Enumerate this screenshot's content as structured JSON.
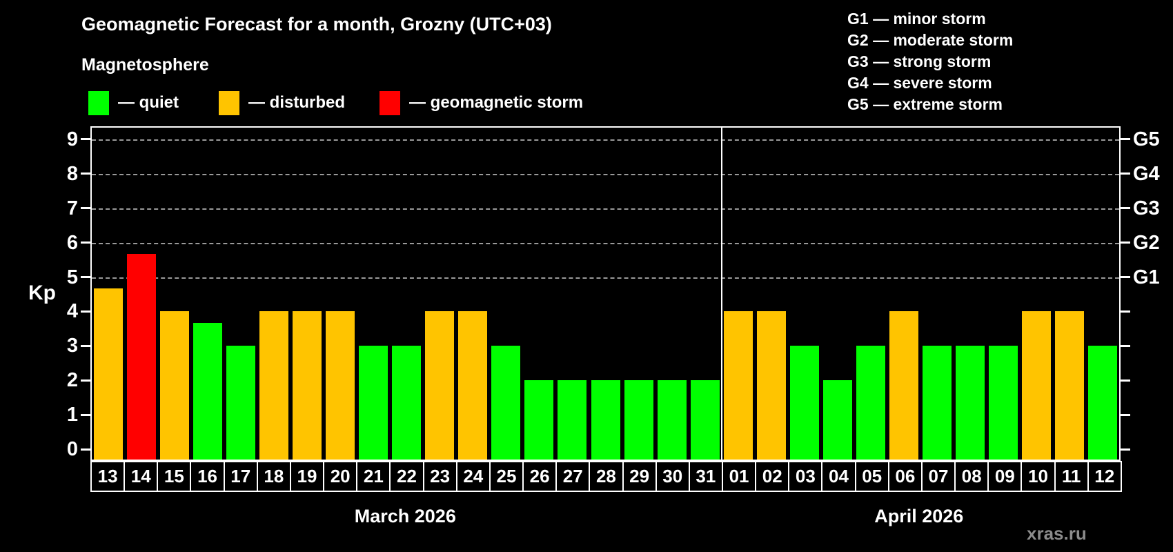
{
  "header": {
    "title": "Geomagnetic Forecast for a month, Grozny (UTC+03)",
    "subtitle": "Magnetosphere",
    "legend": [
      {
        "name": "quiet",
        "label": "— quiet",
        "color": "#00ff00"
      },
      {
        "name": "disturbed",
        "label": "— disturbed",
        "color": "#ffc400"
      },
      {
        "name": "storm",
        "label": "— geomagnetic storm",
        "color": "#ff0000"
      }
    ],
    "g_scale": [
      "G1 — minor storm",
      "G2 — moderate storm",
      "G3 — strong storm",
      "G4 — severe storm",
      "G5 — extreme storm"
    ]
  },
  "watermark": "xras.ru",
  "chart_data": {
    "type": "bar",
    "title": "Geomagnetic Forecast for a month, Grozny (UTC+03)",
    "ylabel": "Kp",
    "ylim": [
      0,
      9
    ],
    "y_ticks": [
      0,
      1,
      2,
      3,
      4,
      5,
      6,
      7,
      8,
      9
    ],
    "gridlines_at": [
      5,
      6,
      7,
      8,
      9
    ],
    "grid": "dashed horizontal lines at storm levels only",
    "legend_position": "top-left",
    "right_axis_labels": [
      {
        "kp": 5,
        "label": "G1"
      },
      {
        "kp": 6,
        "label": "G2"
      },
      {
        "kp": 7,
        "label": "G3"
      },
      {
        "kp": 8,
        "label": "G4"
      },
      {
        "kp": 9,
        "label": "G5"
      }
    ],
    "status_colors": {
      "quiet": "#00ff00",
      "disturbed": "#ffc400",
      "storm": "#ff0000"
    },
    "months": [
      {
        "label": "March 2026",
        "days": [
          {
            "day": "13",
            "kp": 4.67,
            "status": "disturbed"
          },
          {
            "day": "14",
            "kp": 5.67,
            "status": "storm"
          },
          {
            "day": "15",
            "kp": 4.0,
            "status": "disturbed"
          },
          {
            "day": "16",
            "kp": 3.67,
            "status": "quiet"
          },
          {
            "day": "17",
            "kp": 3.0,
            "status": "quiet"
          },
          {
            "day": "18",
            "kp": 4.0,
            "status": "disturbed"
          },
          {
            "day": "19",
            "kp": 4.0,
            "status": "disturbed"
          },
          {
            "day": "20",
            "kp": 4.0,
            "status": "disturbed"
          },
          {
            "day": "21",
            "kp": 3.0,
            "status": "quiet"
          },
          {
            "day": "22",
            "kp": 3.0,
            "status": "quiet"
          },
          {
            "day": "23",
            "kp": 4.0,
            "status": "disturbed"
          },
          {
            "day": "24",
            "kp": 4.0,
            "status": "disturbed"
          },
          {
            "day": "25",
            "kp": 3.0,
            "status": "quiet"
          },
          {
            "day": "26",
            "kp": 2.0,
            "status": "quiet"
          },
          {
            "day": "27",
            "kp": 2.0,
            "status": "quiet"
          },
          {
            "day": "28",
            "kp": 2.0,
            "status": "quiet"
          },
          {
            "day": "29",
            "kp": 2.0,
            "status": "quiet"
          },
          {
            "day": "30",
            "kp": 2.0,
            "status": "quiet"
          },
          {
            "day": "31",
            "kp": 2.0,
            "status": "quiet"
          }
        ]
      },
      {
        "label": "April 2026",
        "days": [
          {
            "day": "01",
            "kp": 4.0,
            "status": "disturbed"
          },
          {
            "day": "02",
            "kp": 4.0,
            "status": "disturbed"
          },
          {
            "day": "03",
            "kp": 3.0,
            "status": "quiet"
          },
          {
            "day": "04",
            "kp": 2.0,
            "status": "quiet"
          },
          {
            "day": "05",
            "kp": 3.0,
            "status": "quiet"
          },
          {
            "day": "06",
            "kp": 4.0,
            "status": "disturbed"
          },
          {
            "day": "07",
            "kp": 3.0,
            "status": "quiet"
          },
          {
            "day": "08",
            "kp": 3.0,
            "status": "quiet"
          },
          {
            "day": "09",
            "kp": 3.0,
            "status": "quiet"
          },
          {
            "day": "10",
            "kp": 4.0,
            "status": "disturbed"
          },
          {
            "day": "11",
            "kp": 4.0,
            "status": "disturbed"
          },
          {
            "day": "12",
            "kp": 3.0,
            "status": "quiet"
          }
        ]
      }
    ]
  }
}
